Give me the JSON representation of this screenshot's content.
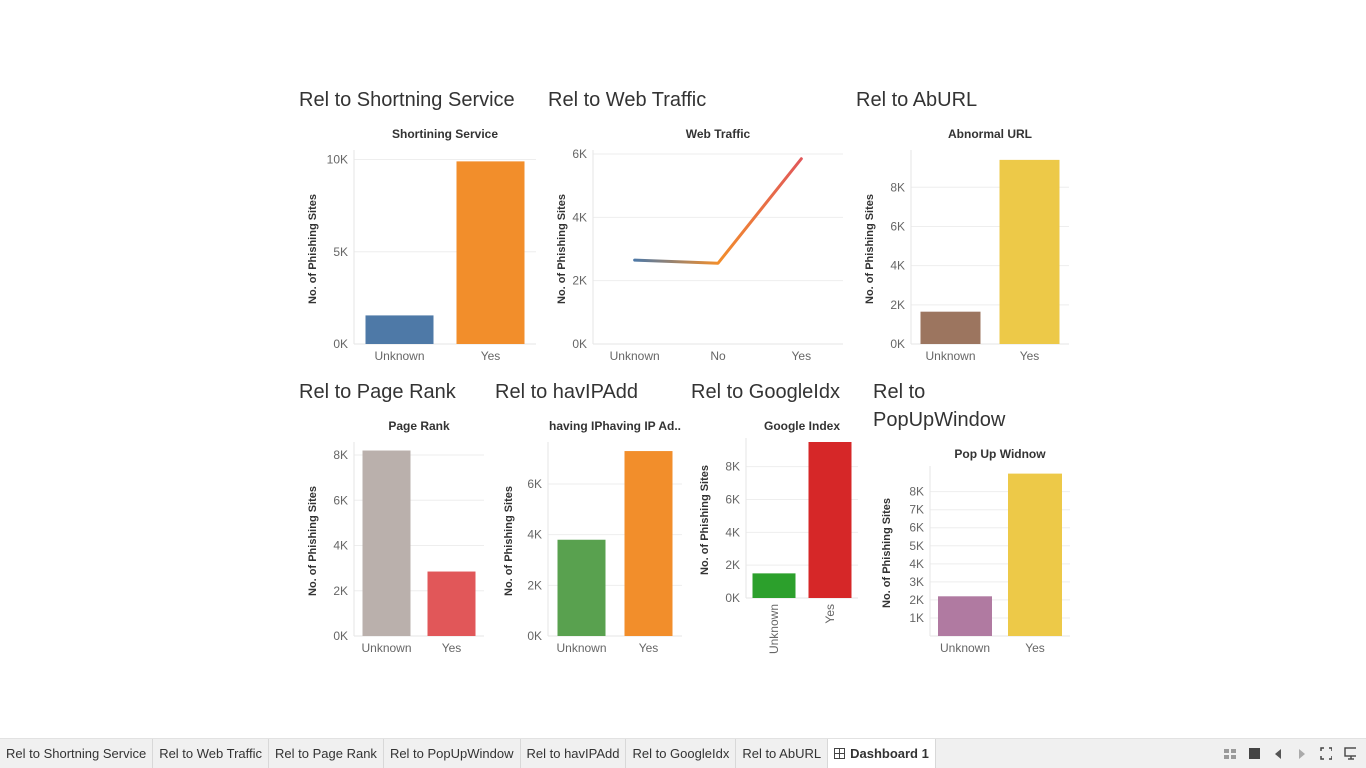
{
  "sheets": [
    {
      "id": "shortening",
      "sheet_title": "Rel to Shortning Service",
      "chart": {
        "type": "bar",
        "title": "Shortining Service",
        "ylabel": "No. of Phishing Sites",
        "categories": [
          "Unknown",
          "Yes"
        ],
        "values": [
          1550,
          9900
        ],
        "colors": [
          "#4e79a7",
          "#f28e2b"
        ],
        "ylim": [
          0,
          10300
        ],
        "yticks": [
          0,
          5000,
          10000
        ],
        "ytick_labels": [
          "0K",
          "5K",
          "10K"
        ]
      }
    },
    {
      "id": "webtraffic",
      "sheet_title": "Rel to Web Traffic",
      "chart": {
        "type": "line",
        "title": "Web Traffic",
        "ylabel": "No. of Phishing Sites",
        "categories": [
          "Unknown",
          "No",
          "Yes"
        ],
        "values": [
          2650,
          2550,
          5850
        ],
        "colors": [
          "#4e79a7",
          "#f28e2b",
          "#e15759"
        ],
        "ylim": [
          0,
          6000
        ],
        "yticks": [
          0,
          2000,
          4000,
          6000
        ],
        "ytick_labels": [
          "0K",
          "2K",
          "4K",
          "6K"
        ]
      }
    },
    {
      "id": "aburl",
      "sheet_title": "Rel to AbURL",
      "chart": {
        "type": "bar",
        "title": "Abnormal URL",
        "ylabel": "No. of Phishing Sites",
        "categories": [
          "Unknown",
          "Yes"
        ],
        "values": [
          1650,
          9400
        ],
        "colors": [
          "#9c755f",
          "#edc948"
        ],
        "ylim": [
          0,
          9700
        ],
        "yticks": [
          0,
          2000,
          4000,
          6000,
          8000
        ],
        "ytick_labels": [
          "0K",
          "2K",
          "4K",
          "6K",
          "8K"
        ]
      }
    },
    {
      "id": "pagerank",
      "sheet_title": "Rel to Page Rank",
      "chart": {
        "type": "bar",
        "title": "Page Rank",
        "ylabel": "No. of Phishing Sites",
        "categories": [
          "Unknown",
          "Yes"
        ],
        "values": [
          8200,
          2850
        ],
        "colors": [
          "#bab0ac",
          "#e15759"
        ],
        "ylim": [
          0,
          8400
        ],
        "yticks": [
          0,
          2000,
          4000,
          6000,
          8000
        ],
        "ytick_labels": [
          "0K",
          "2K",
          "4K",
          "6K",
          "8K"
        ]
      }
    },
    {
      "id": "havipadd",
      "sheet_title": "Rel to havIPAdd",
      "chart": {
        "type": "bar",
        "title": "having IPhaving IP Ad..",
        "ylabel": "No. of Phishing Sites",
        "categories": [
          "Unknown",
          "Yes"
        ],
        "values": [
          3800,
          7300
        ],
        "colors": [
          "#59a14f",
          "#f28e2b"
        ],
        "ylim": [
          0,
          7500
        ],
        "yticks": [
          0,
          2000,
          4000,
          6000
        ],
        "ytick_labels": [
          "0K",
          "2K",
          "4K",
          "6K"
        ]
      }
    },
    {
      "id": "googleidx",
      "sheet_title": "Rel to GoogleIdx",
      "chart": {
        "type": "bar",
        "title": "Google Index",
        "ylabel": "No. of Phishing Sites",
        "categories": [
          "Unknown",
          "Yes"
        ],
        "values": [
          1500,
          9500
        ],
        "colors": [
          "#2ca02c",
          "#d62728"
        ],
        "ylim": [
          0,
          9500
        ],
        "yticks": [
          0,
          2000,
          4000,
          6000,
          8000
        ],
        "ytick_labels": [
          "0K",
          "2K",
          "4K",
          "6K",
          "8K"
        ],
        "rotate_x_labels": true
      }
    },
    {
      "id": "popup",
      "sheet_title": "Rel to PopUpWindow",
      "sheet_title_lines": [
        "Rel to",
        "PopUpWindow"
      ],
      "chart": {
        "type": "bar",
        "title": "Pop Up Widnow",
        "ylabel": "No. of Phishing Sites",
        "categories": [
          "Unknown",
          "Yes"
        ],
        "values": [
          2200,
          9000
        ],
        "colors": [
          "#b07aa1",
          "#edc948"
        ],
        "ylim": [
          0,
          9200
        ],
        "yticks": [
          1000,
          2000,
          3000,
          4000,
          5000,
          6000,
          7000,
          8000
        ],
        "ytick_labels": [
          "1K",
          "2K",
          "3K",
          "4K",
          "5K",
          "6K",
          "7K",
          "8K"
        ]
      }
    }
  ],
  "tabs": [
    {
      "label": "Rel to Shortning Service",
      "active": false
    },
    {
      "label": "Rel to Web Traffic",
      "active": false
    },
    {
      "label": "Rel to Page Rank",
      "active": false
    },
    {
      "label": "Rel to PopUpWindow",
      "active": false
    },
    {
      "label": "Rel to havIPAdd",
      "active": false
    },
    {
      "label": "Rel to GoogleIdx",
      "active": false
    },
    {
      "label": "Rel to AbURL",
      "active": false
    },
    {
      "label": "Dashboard 1",
      "active": true,
      "icon": "dashboard-grid-icon"
    }
  ],
  "tab_tools": [
    "sheet-sorter-icon",
    "filmstrip-icon",
    "previous-tab-icon",
    "next-tab-icon",
    "fullscreen-icon",
    "presentation-mode-icon"
  ]
}
